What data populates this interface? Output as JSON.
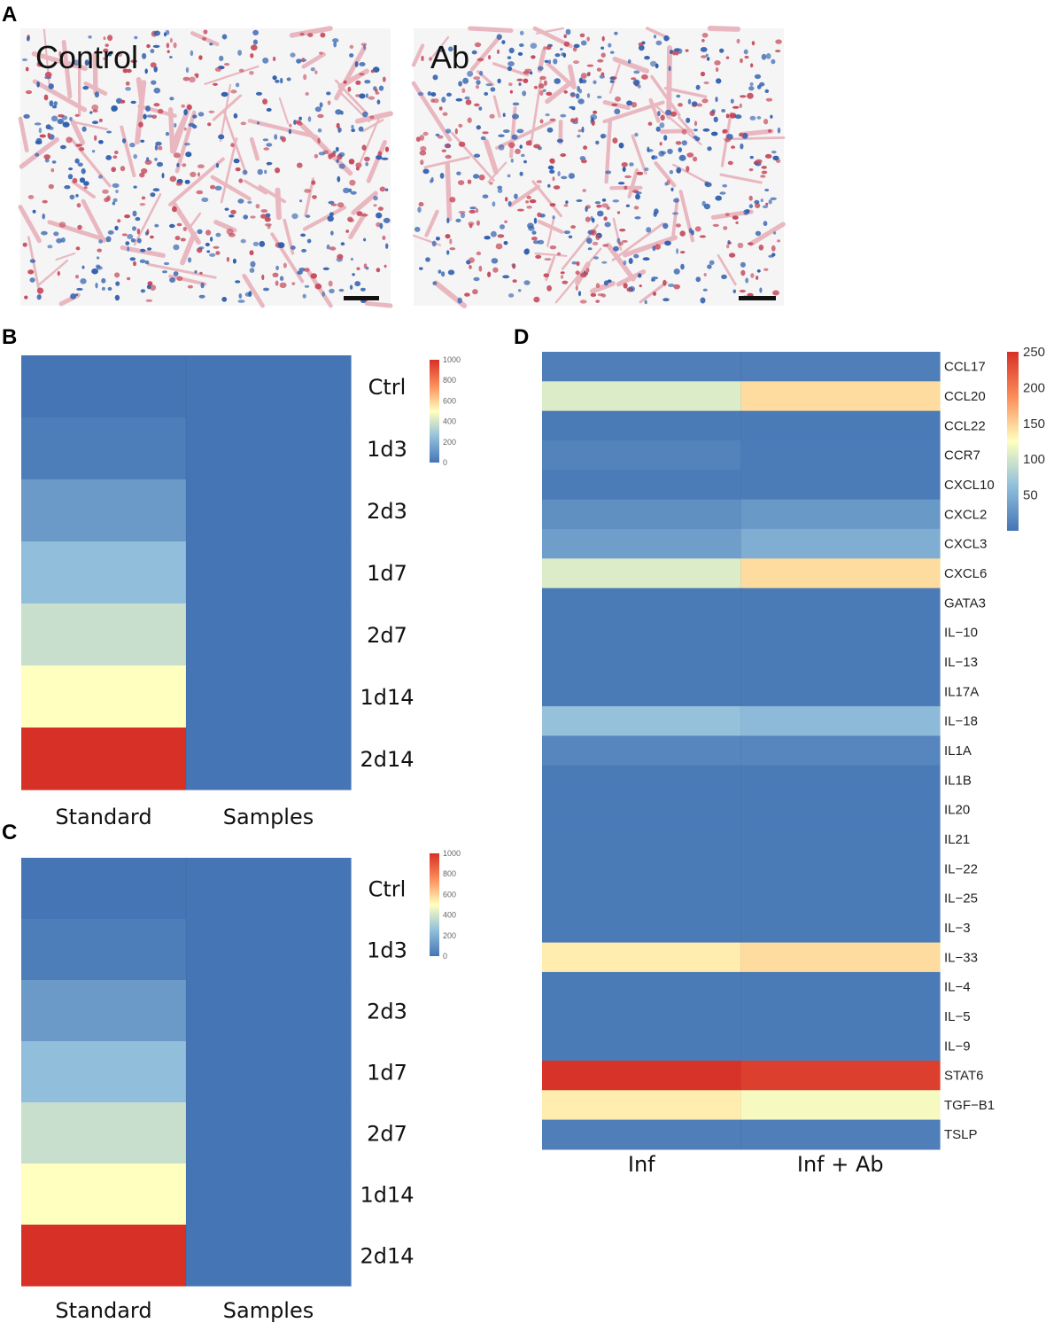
{
  "panels": {
    "a": "A",
    "b": "B",
    "c": "C",
    "d": "D"
  },
  "micrographs": {
    "left_label": "Control",
    "right_label": "Ab"
  },
  "colors": {
    "low": "#4575b4",
    "mid_low": "#a6cde3",
    "mid": "#ffffbf",
    "high": "#d73027",
    "tissue_blue": "#2f5fae",
    "tissue_red": "#c64a5c",
    "tissue_pink": "#e9b7c0",
    "background": "#f5f5f5"
  },
  "chart_data": [
    {
      "id": "B",
      "type": "heatmap",
      "columns": [
        "Standard",
        "Samples"
      ],
      "rows": [
        "Ctrl",
        "1d3",
        "2d3",
        "1d7",
        "2d7",
        "1d14",
        "2d14"
      ],
      "values": [
        [
          0,
          0
        ],
        [
          30,
          0
        ],
        [
          125,
          0
        ],
        [
          250,
          0
        ],
        [
          375,
          0
        ],
        [
          500,
          0
        ],
        [
          1000,
          0
        ]
      ],
      "colorbar": {
        "ticks": [
          "1000",
          "800",
          "600",
          "400",
          "200",
          "0"
        ],
        "range": [
          0,
          1000
        ]
      }
    },
    {
      "id": "C",
      "type": "heatmap",
      "columns": [
        "Standard",
        "Samples"
      ],
      "rows": [
        "Ctrl",
        "1d3",
        "2d3",
        "1d7",
        "2d7",
        "1d14",
        "2d14"
      ],
      "values": [
        [
          0,
          0
        ],
        [
          30,
          0
        ],
        [
          125,
          0
        ],
        [
          250,
          0
        ],
        [
          375,
          0
        ],
        [
          500,
          0
        ],
        [
          1000,
          0
        ]
      ],
      "colorbar": {
        "ticks": [
          "1000",
          "800",
          "600",
          "400",
          "200",
          "0"
        ],
        "range": [
          0,
          1000
        ]
      }
    },
    {
      "id": "D",
      "type": "heatmap",
      "columns": [
        "Inf",
        "Inf + Ab"
      ],
      "rows": [
        "CCL17",
        "CCL20",
        "CCL22",
        "CCR7",
        "CXCL10",
        "CXCL2",
        "CXCL3",
        "CXCL6",
        "GATA3",
        "IL−10",
        "IL−13",
        "IL17A",
        "IL−18",
        "IL1A",
        "IL1B",
        "IL20",
        "IL21",
        "IL−22",
        "IL−25",
        "IL−3",
        "IL−33",
        "IL−4",
        "IL−5",
        "IL−9",
        "STAT6",
        "TGF−B1",
        "TSLP"
      ],
      "values": [
        [
          8,
          8
        ],
        [
          105,
          145
        ],
        [
          5,
          5
        ],
        [
          12,
          6
        ],
        [
          6,
          6
        ],
        [
          22,
          30
        ],
        [
          35,
          48
        ],
        [
          105,
          145
        ],
        [
          5,
          5
        ],
        [
          5,
          5
        ],
        [
          5,
          5
        ],
        [
          5,
          5
        ],
        [
          65,
          58
        ],
        [
          14,
          14
        ],
        [
          5,
          5
        ],
        [
          5,
          5
        ],
        [
          5,
          5
        ],
        [
          5,
          5
        ],
        [
          5,
          5
        ],
        [
          5,
          5
        ],
        [
          135,
          145
        ],
        [
          5,
          5
        ],
        [
          5,
          5
        ],
        [
          5,
          5
        ],
        [
          248,
          240
        ],
        [
          135,
          120
        ],
        [
          8,
          8
        ]
      ],
      "colorbar": {
        "ticks": [
          "250",
          "200",
          "150",
          "100",
          "50"
        ],
        "range": [
          0,
          250
        ]
      }
    }
  ]
}
